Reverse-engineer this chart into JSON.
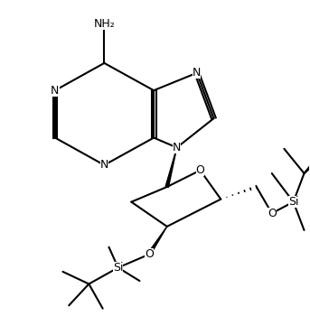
{
  "figsize": [
    3.43,
    3.5
  ],
  "dpi": 100,
  "background": "#ffffff",
  "line_color": "#000000",
  "line_width": 1.5,
  "font_size": 9,
  "xlim": [
    0,
    10
  ],
  "ylim": [
    0,
    10
  ]
}
